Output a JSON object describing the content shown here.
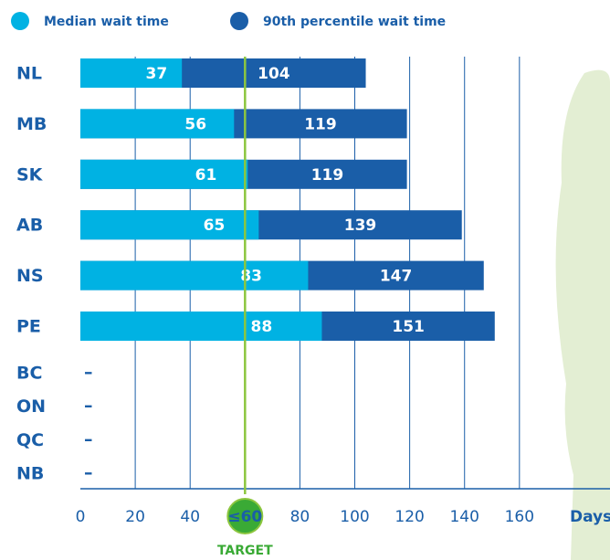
{
  "chart_data": {
    "type": "bar",
    "orientation": "horizontal",
    "overlap": true,
    "categories": [
      "NL",
      "MB",
      "SK",
      "AB",
      "NS",
      "PE",
      "BC",
      "ON",
      "QC",
      "NB"
    ],
    "series": [
      {
        "name": "Median wait time",
        "color": "#00b2e3",
        "values": [
          37,
          56,
          61,
          65,
          83,
          88,
          null,
          null,
          null,
          null
        ]
      },
      {
        "name": "90th percentile wait time",
        "color": "#1a5ea8",
        "values": [
          104,
          119,
          119,
          139,
          147,
          151,
          null,
          null,
          null,
          null
        ]
      }
    ],
    "missing_label": "–",
    "xlim": [
      0,
      193
    ],
    "xticks": [
      0,
      20,
      40,
      {
        "value": 60,
        "label": "≤60"
      },
      80,
      100,
      120,
      140,
      160
    ],
    "xlabel": "Days",
    "target": {
      "value": 60,
      "label": "TARGET",
      "color": "#8cc63f"
    },
    "grid": true
  }
}
